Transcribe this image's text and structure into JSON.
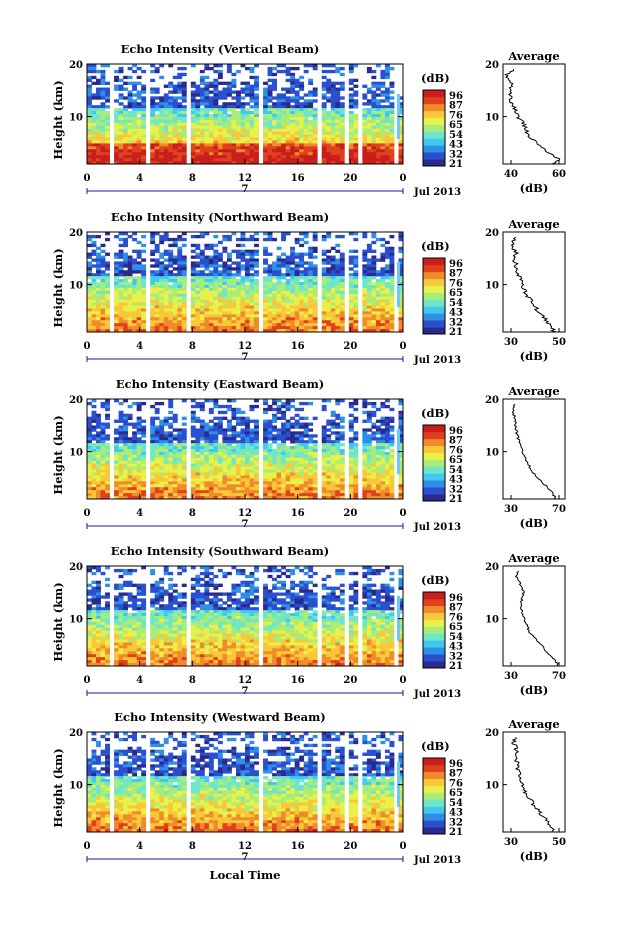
{
  "figure": {
    "xlabel": "Local Time",
    "colorbar_unit": "(dB)",
    "colorbar_ticks": [
      "96",
      "87",
      "76",
      "65",
      "54",
      "43",
      "32",
      "21"
    ],
    "colorbar_colors": [
      "#2a2a8c",
      "#2a4fd0",
      "#2f8fe6",
      "#40c8f0",
      "#6ee6c8",
      "#a8ec7a",
      "#e8f04a",
      "#f8c83a",
      "#f08a2a",
      "#e0401e",
      "#c81e1e"
    ],
    "average_title": "Average",
    "average_xlabel": "(dB)",
    "date_label": "Jul 2013",
    "day_marker": "7",
    "y_ticks": [
      "20",
      "10"
    ],
    "x_ticks": [
      "0",
      "4",
      "8",
      "12",
      "16",
      "20",
      "0"
    ]
  },
  "chart_data": [
    {
      "type": "heatmap",
      "title": "Echo Intensity (Vertical Beam)",
      "xlabel": "",
      "ylabel": "Height (km)",
      "xlim": [
        0,
        24
      ],
      "ylim": [
        1,
        20
      ],
      "zlim": [
        21,
        96
      ],
      "profile_tick_labels": [
        "40",
        "60"
      ],
      "profile": {
        "heights": [
          1,
          2,
          3,
          4,
          5,
          6,
          7,
          8,
          9,
          10,
          11,
          12,
          13,
          14,
          15,
          16,
          17,
          18,
          19
        ],
        "values": [
          60,
          62,
          58,
          55,
          52,
          50,
          48,
          47,
          46,
          44,
          43,
          42,
          41,
          41,
          40,
          42,
          40,
          39,
          42
        ]
      }
    },
    {
      "type": "heatmap",
      "title": "Echo Intensity (Northward Beam)",
      "xlabel": "",
      "ylabel": "Height (km)",
      "xlim": [
        0,
        24
      ],
      "ylim": [
        1,
        20
      ],
      "zlim": [
        21,
        96
      ],
      "profile_tick_labels": [
        "30",
        "50"
      ],
      "profile": {
        "heights": [
          1,
          2,
          3,
          4,
          5,
          6,
          7,
          8,
          9,
          10,
          11,
          12,
          13,
          14,
          15,
          16,
          17,
          18,
          19
        ],
        "values": [
          50,
          49,
          47,
          45,
          43,
          41,
          40,
          38,
          37,
          36,
          35,
          34,
          33,
          33,
          32,
          33,
          32,
          31,
          33
        ]
      }
    },
    {
      "type": "heatmap",
      "title": "Echo Intensity (Eastward Beam)",
      "xlabel": "",
      "ylabel": "Height (km)",
      "xlim": [
        0,
        24
      ],
      "ylim": [
        1,
        20
      ],
      "zlim": [
        21,
        96
      ],
      "profile_tick_labels": [
        "30",
        "70"
      ],
      "profile": {
        "heights": [
          1,
          2,
          3,
          4,
          5,
          6,
          7,
          8,
          9,
          10,
          11,
          12,
          13,
          14,
          15,
          16,
          17,
          18,
          19
        ],
        "values": [
          68,
          66,
          62,
          58,
          54,
          50,
          47,
          45,
          43,
          41,
          40,
          38,
          37,
          36,
          35,
          35,
          34,
          33,
          35
        ]
      }
    },
    {
      "type": "heatmap",
      "title": "Echo Intensity (Southward Beam)",
      "xlabel": "",
      "ylabel": "Height (km)",
      "xlim": [
        0,
        24
      ],
      "ylim": [
        1,
        20
      ],
      "zlim": [
        21,
        96
      ],
      "profile_tick_labels": [
        "30",
        "70"
      ],
      "profile": {
        "heights": [
          1,
          2,
          3,
          4,
          5,
          6,
          7,
          8,
          9,
          10,
          11,
          12,
          13,
          14,
          15,
          16,
          17,
          18,
          19
        ],
        "values": [
          70,
          68,
          64,
          60,
          56,
          52,
          48,
          46,
          44,
          42,
          41,
          40,
          40,
          41,
          42,
          40,
          38,
          36,
          38
        ]
      }
    },
    {
      "type": "heatmap",
      "title": "Echo Intensity (Westward Beam)",
      "xlabel": "",
      "ylabel": "Height (km)",
      "xlim": [
        0,
        24
      ],
      "ylim": [
        1,
        20
      ],
      "zlim": [
        21,
        96
      ],
      "profile_tick_labels": [
        "30",
        "50"
      ],
      "profile": {
        "heights": [
          1,
          2,
          3,
          4,
          5,
          6,
          7,
          8,
          9,
          10,
          11,
          12,
          13,
          14,
          15,
          16,
          17,
          18,
          19
        ],
        "values": [
          50,
          49,
          47,
          45,
          43,
          41,
          40,
          38,
          37,
          36,
          35,
          35,
          34,
          34,
          33,
          34,
          33,
          32,
          33
        ]
      }
    }
  ]
}
